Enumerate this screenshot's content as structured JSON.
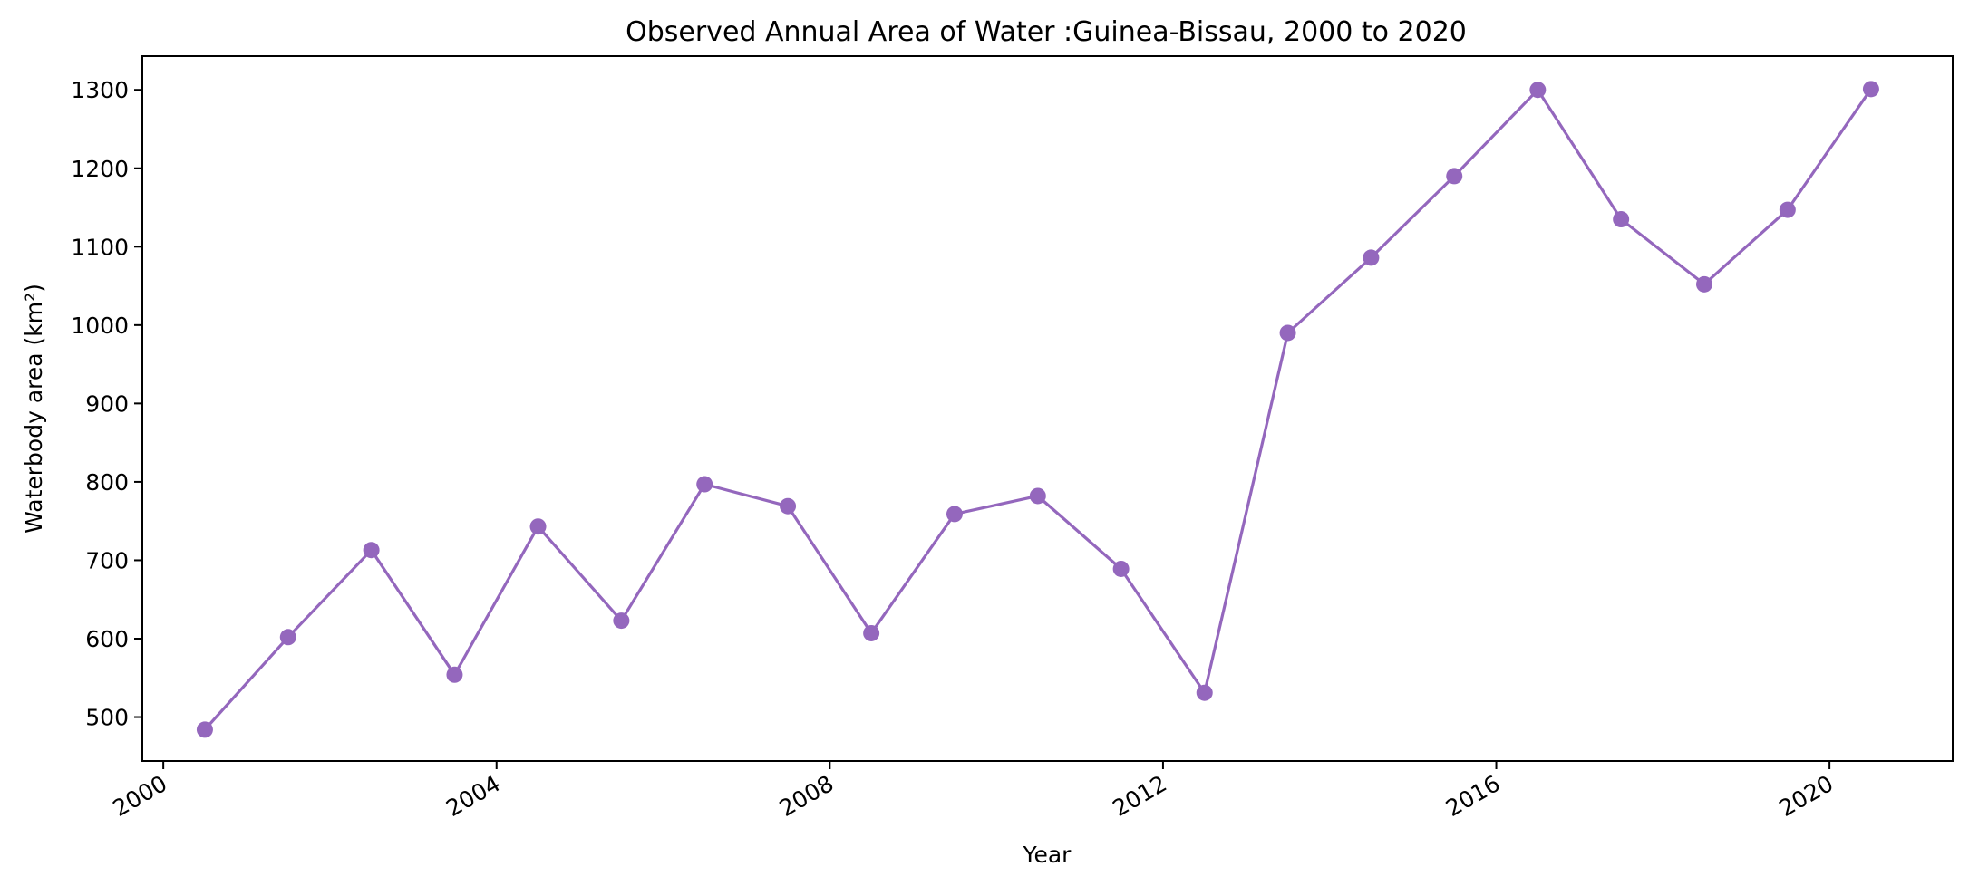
{
  "chart_data": {
    "type": "line",
    "title": "Observed Annual Area of Water :Guinea-Bissau, 2000 to 2020",
    "xlabel": "Year",
    "ylabel": "Waterbody area (km²)",
    "x_ticks": [
      "2000",
      "2004",
      "2008",
      "2012",
      "2016",
      "2020"
    ],
    "y_ticks": [
      500,
      600,
      700,
      800,
      900,
      1000,
      1100,
      1200,
      1300
    ],
    "xlim": [
      "1999-10-01",
      "2021-06-24"
    ],
    "ylim": [
      444,
      1343
    ],
    "grid": false,
    "color": "#9467bd",
    "series": [
      {
        "x": [
          "2000-07-01",
          "2001-07-01",
          "2002-07-01",
          "2003-07-01",
          "2004-07-01",
          "2005-07-01",
          "2006-07-01",
          "2007-07-01",
          "2008-07-01",
          "2009-07-01",
          "2010-07-01",
          "2011-07-01",
          "2012-07-01",
          "2013-07-01",
          "2014-07-01",
          "2015-07-01",
          "2016-07-01",
          "2017-07-01",
          "2018-07-01",
          "2019-07-01",
          "2020-07-01"
        ],
        "values": [
          484,
          602,
          713,
          554,
          743,
          623,
          797,
          769,
          607,
          759,
          782,
          689,
          531,
          990,
          1086,
          1190,
          1300,
          1135,
          1052,
          1147,
          1301
        ]
      }
    ]
  }
}
